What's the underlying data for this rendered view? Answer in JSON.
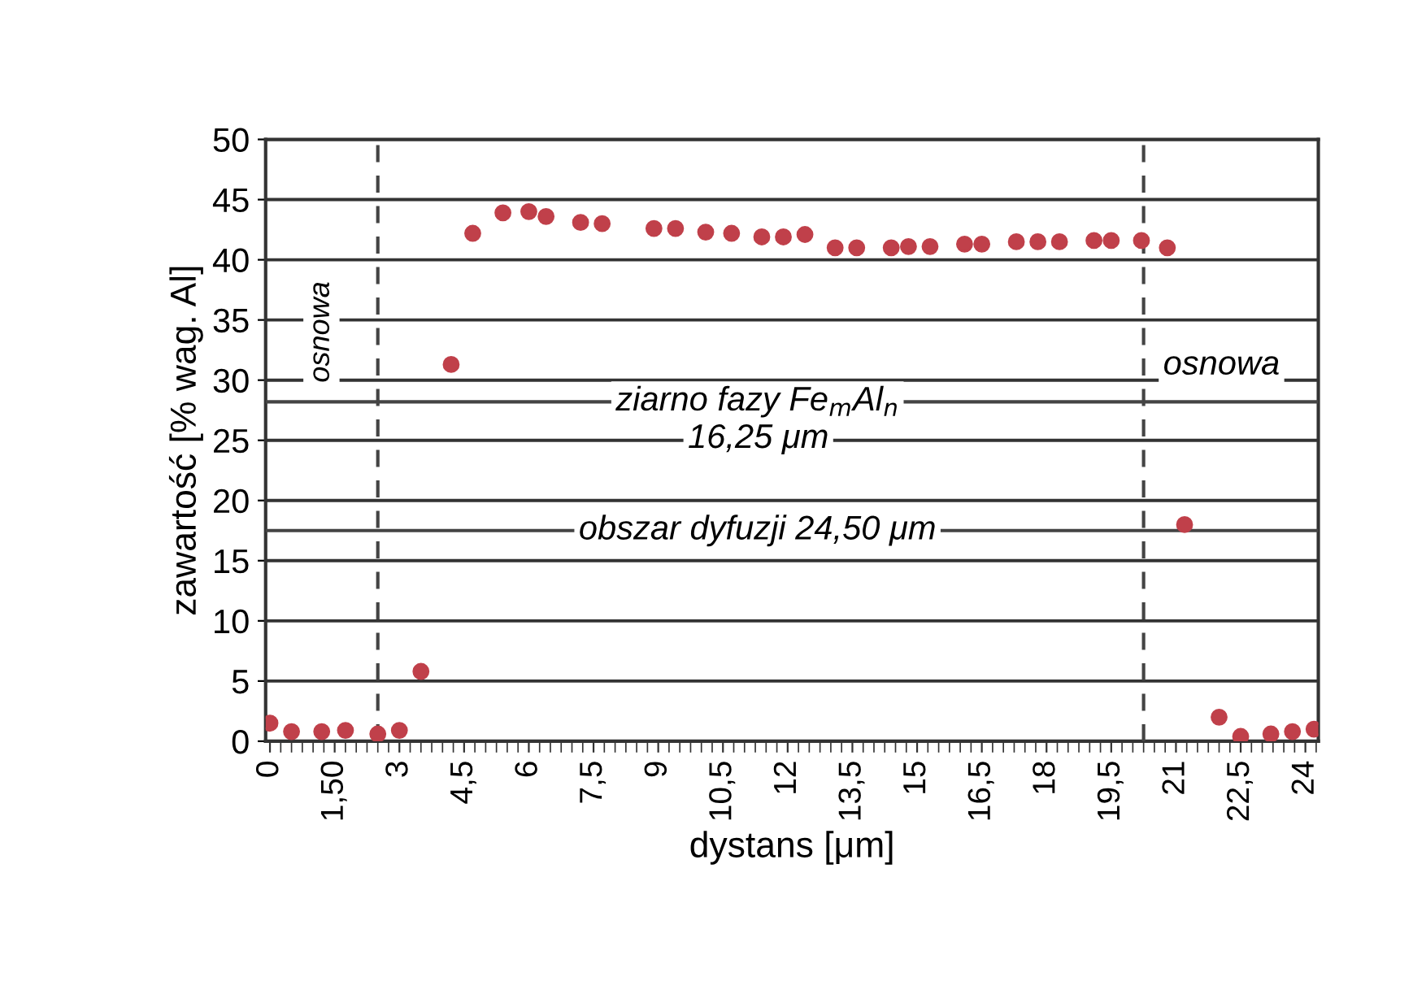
{
  "chart_data": {
    "type": "scatter",
    "xlabel": "dystans [μm]",
    "ylabel": "zawartość [% wag. Al]",
    "x": [
      0,
      0.5,
      1.2,
      1.75,
      2.5,
      3.0,
      3.5,
      4.2,
      4.7,
      5.4,
      6.0,
      6.4,
      7.2,
      7.7,
      8.9,
      9.4,
      10.1,
      10.7,
      11.4,
      11.9,
      12.4,
      13.1,
      13.6,
      14.4,
      14.8,
      15.3,
      16.1,
      16.5,
      17.3,
      17.8,
      18.3,
      19.1,
      19.5,
      20.2,
      20.8,
      21.2,
      22.0,
      22.5,
      23.2,
      23.7,
      24.2
    ],
    "series": [
      {
        "color": "#c0404a",
        "values": [
          1.5,
          0.8,
          0.8,
          0.9,
          0.6,
          0.9,
          5.8,
          31.3,
          42.2,
          43.9,
          44.0,
          43.6,
          43.1,
          43.0,
          42.6,
          42.6,
          42.3,
          42.2,
          41.9,
          41.9,
          42.1,
          41.0,
          41.0,
          41.0,
          41.1,
          41.1,
          41.3,
          41.3,
          41.5,
          41.5,
          41.5,
          41.6,
          41.6,
          41.6,
          41.0,
          18,
          2.0,
          0.4,
          0.6,
          0.8,
          1.0
        ]
      }
    ],
    "marker": "circle",
    "grid": "y",
    "legend": false,
    "xlim": [
      -0.1,
      24.3
    ],
    "ylim": [
      0,
      50
    ],
    "xticks": [
      0,
      {
        "value": 1.5,
        "label": "1,50"
      },
      3,
      {
        "value": 4.5,
        "label": "4,5"
      },
      6,
      {
        "value": 7.5,
        "label": "7,5"
      },
      9,
      {
        "value": 10.5,
        "label": "10,5"
      },
      12,
      {
        "value": 13.5,
        "label": "13,5"
      },
      15,
      {
        "value": 16.5,
        "label": "16,5"
      },
      18,
      {
        "value": 19.5,
        "label": "19,5"
      },
      21,
      {
        "value": 22.5,
        "label": "22,5"
      },
      24
    ],
    "yticks": [
      0,
      5,
      10,
      15,
      20,
      25,
      30,
      35,
      40,
      45,
      50
    ],
    "ref_lines": [
      {
        "axis": "x",
        "value": 2.5,
        "line_style": "dashed"
      },
      {
        "axis": "x",
        "value": 20.25,
        "line_style": "dashed"
      },
      {
        "axis": "y",
        "value": 28.2,
        "label": "ziarno fazy Fe$_{m}$Al$_{n}$"
      },
      {
        "axis": "y",
        "value": 17.5,
        "label": "obszar dyfuzji 24,50 μm"
      }
    ],
    "annotations": [
      "16,25 μm",
      "osnowa",
      "osnowa"
    ]
  }
}
